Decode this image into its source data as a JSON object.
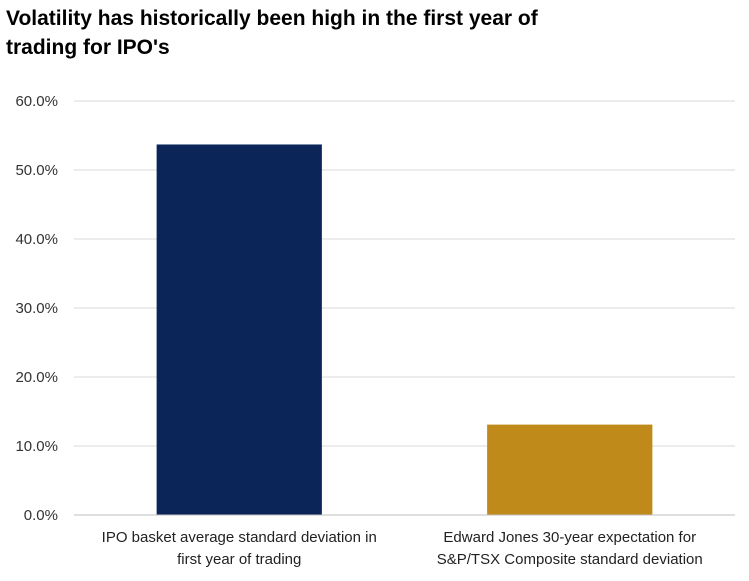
{
  "chart_data": {
    "type": "bar",
    "title_lines": [
      "Volatility has historically been high in the first year of",
      "trading for IPO's"
    ],
    "categories": [
      [
        "IPO basket average standard deviation in",
        "first year of trading"
      ],
      [
        "Edward Jones 30-year expectation for",
        "S&P/TSX Composite standard deviation"
      ]
    ],
    "values": [
      53.7,
      13.1
    ],
    "colors": [
      "#0b2559",
      "#c08a1a"
    ],
    "ylim": [
      0,
      60
    ],
    "yticks": [
      0,
      10,
      20,
      30,
      40,
      50,
      60
    ],
    "ytick_labels": [
      "0.0%",
      "10.0%",
      "20.0%",
      "30.0%",
      "40.0%",
      "50.0%",
      "60.0%"
    ],
    "grid": true,
    "xlabel": "",
    "ylabel": ""
  }
}
